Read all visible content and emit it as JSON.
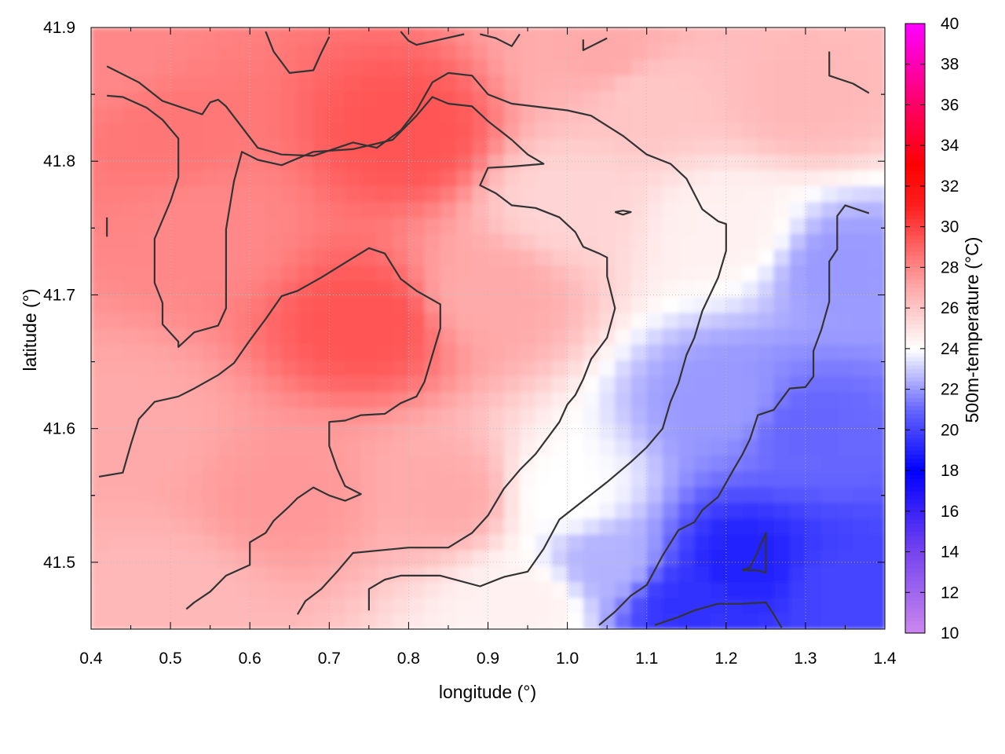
{
  "chart_data": {
    "type": "heatmap",
    "xlabel": "longitude (°)",
    "ylabel": "latitude (°)",
    "colorbar_label": "500m-temperature (°C)",
    "xlim": [
      0.4,
      1.4
    ],
    "ylim": [
      41.45,
      41.9
    ],
    "x_ticks": [
      "0.4",
      "0.5",
      "0.6",
      "0.7",
      "0.8",
      "0.9",
      "1.0",
      "1.1",
      "1.2",
      "1.3",
      "1.4"
    ],
    "y_ticks": [
      "41.5",
      "41.6",
      "41.7",
      "41.8",
      "41.9"
    ],
    "colorbar_range": [
      10,
      40
    ],
    "colorbar_ticks": [
      "10",
      "12",
      "14",
      "16",
      "18",
      "20",
      "22",
      "24",
      "26",
      "28",
      "30",
      "32",
      "34",
      "36",
      "38",
      "40"
    ],
    "colormap": [
      {
        "value": 10,
        "color": "#cc88ee"
      },
      {
        "value": 12,
        "color": "#a066ee"
      },
      {
        "value": 14,
        "color": "#7744ee"
      },
      {
        "value": 18,
        "color": "#0000ff"
      },
      {
        "value": 21,
        "color": "#6666ff"
      },
      {
        "value": 24,
        "color": "#ffffff"
      },
      {
        "value": 27,
        "color": "#ffaaaa"
      },
      {
        "value": 31,
        "color": "#ff2020"
      },
      {
        "value": 33,
        "color": "#ff0000"
      },
      {
        "value": 36,
        "color": "#ff0066"
      },
      {
        "value": 40,
        "color": "#ff00ff"
      }
    ],
    "grid": true,
    "colorbar_placement": "right",
    "contour_color": "#333333",
    "field_samples": [
      {
        "lon": 0.42,
        "lat": 41.88,
        "temp": 28
      },
      {
        "lon": 0.5,
        "lat": 41.82,
        "temp": 28.5
      },
      {
        "lon": 0.8,
        "lat": 41.82,
        "temp": 29.5
      },
      {
        "lon": 0.75,
        "lat": 41.68,
        "temp": 29.5
      },
      {
        "lon": 0.55,
        "lat": 41.75,
        "temp": 28
      },
      {
        "lon": 0.45,
        "lat": 41.6,
        "temp": 27
      },
      {
        "lon": 0.5,
        "lat": 41.47,
        "temp": 26.5
      },
      {
        "lon": 0.65,
        "lat": 41.55,
        "temp": 27.5
      },
      {
        "lon": 0.85,
        "lat": 41.55,
        "temp": 27
      },
      {
        "lon": 0.9,
        "lat": 41.7,
        "temp": 27
      },
      {
        "lon": 1.0,
        "lat": 41.77,
        "temp": 25.5
      },
      {
        "lon": 1.1,
        "lat": 41.85,
        "temp": 26
      },
      {
        "lon": 1.3,
        "lat": 41.85,
        "temp": 26.5
      },
      {
        "lon": 1.05,
        "lat": 41.88,
        "temp": 27
      },
      {
        "lon": 1.0,
        "lat": 41.55,
        "temp": 24
      },
      {
        "lon": 1.05,
        "lat": 41.5,
        "temp": 22.5
      },
      {
        "lon": 1.2,
        "lat": 41.62,
        "temp": 22
      },
      {
        "lon": 1.3,
        "lat": 41.6,
        "temp": 21
      },
      {
        "lon": 1.22,
        "lat": 41.5,
        "temp": 19
      },
      {
        "lon": 1.15,
        "lat": 41.47,
        "temp": 19.5
      },
      {
        "lon": 1.35,
        "lat": 41.48,
        "temp": 20
      },
      {
        "lon": 1.35,
        "lat": 41.72,
        "temp": 22
      },
      {
        "lon": 1.2,
        "lat": 41.75,
        "temp": 24.5
      },
      {
        "lon": 0.95,
        "lat": 41.47,
        "temp": 24.5
      }
    ],
    "contours": [
      [
        [
          0.42,
          41.871
        ],
        [
          0.46,
          41.859
        ],
        [
          0.49,
          41.845
        ],
        [
          0.54,
          41.835
        ],
        [
          0.55,
          41.844
        ],
        [
          0.56,
          41.846
        ],
        [
          0.57,
          41.841
        ],
        [
          0.61,
          41.81
        ],
        [
          0.64,
          41.805
        ],
        [
          0.68,
          41.804
        ],
        [
          0.73,
          41.814
        ],
        [
          0.76,
          41.81
        ],
        [
          0.79,
          41.823
        ],
        [
          0.81,
          41.838
        ],
        [
          0.83,
          41.859
        ],
        [
          0.85,
          41.866
        ],
        [
          0.88,
          41.864
        ],
        [
          0.9,
          41.85
        ],
        [
          0.93,
          41.843
        ],
        [
          1.0,
          41.838
        ],
        [
          1.03,
          41.834
        ],
        [
          1.07,
          41.819
        ],
        [
          1.1,
          41.805
        ],
        [
          1.13,
          41.798
        ],
        [
          1.15,
          41.787
        ],
        [
          1.17,
          41.764
        ],
        [
          1.19,
          41.755
        ],
        [
          1.2,
          41.753
        ],
        [
          1.2,
          41.733
        ],
        [
          1.19,
          41.713
        ],
        [
          1.17,
          41.688
        ],
        [
          1.16,
          41.668
        ],
        [
          1.15,
          41.655
        ],
        [
          1.14,
          41.634
        ],
        [
          1.13,
          41.62
        ],
        [
          1.12,
          41.6
        ],
        [
          1.1,
          41.586
        ],
        [
          1.08,
          41.575
        ],
        [
          1.05,
          41.56
        ],
        [
          1.02,
          41.546
        ],
        [
          0.99,
          41.532
        ],
        [
          0.97,
          41.51
        ],
        [
          0.95,
          41.493
        ],
        [
          0.92,
          41.489
        ],
        [
          0.89,
          41.482
        ],
        [
          0.84,
          41.49
        ],
        [
          0.79,
          41.49
        ],
        [
          0.77,
          41.487
        ],
        [
          0.75,
          41.48
        ],
        [
          0.75,
          41.464
        ]
      ],
      [
        [
          0.42,
          41.849
        ],
        [
          0.44,
          41.848
        ],
        [
          0.47,
          41.84
        ],
        [
          0.49,
          41.831
        ],
        [
          0.51,
          41.817
        ],
        [
          0.51,
          41.796
        ],
        [
          0.51,
          41.788
        ],
        [
          0.5,
          41.77
        ],
        [
          0.48,
          41.742
        ],
        [
          0.48,
          41.725
        ],
        [
          0.48,
          41.709
        ],
        [
          0.49,
          41.694
        ],
        [
          0.49,
          41.678
        ],
        [
          0.51,
          41.665
        ],
        [
          0.51,
          41.661
        ],
        [
          0.53,
          41.672
        ],
        [
          0.56,
          41.677
        ],
        [
          0.57,
          41.69
        ],
        [
          0.57,
          41.714
        ],
        [
          0.57,
          41.749
        ],
        [
          0.58,
          41.785
        ],
        [
          0.59,
          41.807
        ],
        [
          0.61,
          41.801
        ],
        [
          0.64,
          41.797
        ],
        [
          0.68,
          41.807
        ],
        [
          0.73,
          41.809
        ],
        [
          0.78,
          41.816
        ],
        [
          0.81,
          41.834
        ],
        [
          0.83,
          41.848
        ],
        [
          0.85,
          41.843
        ],
        [
          0.88,
          41.841
        ],
        [
          0.9,
          41.83
        ],
        [
          0.93,
          41.816
        ],
        [
          0.95,
          41.805
        ],
        [
          0.97,
          41.798
        ],
        [
          0.93,
          41.796
        ],
        [
          0.9,
          41.795
        ],
        [
          0.89,
          41.782
        ],
        [
          0.91,
          41.776
        ],
        [
          0.93,
          41.767
        ],
        [
          0.96,
          41.765
        ],
        [
          0.99,
          41.758
        ],
        [
          1.01,
          41.747
        ],
        [
          1.02,
          41.736
        ],
        [
          1.04,
          41.731
        ],
        [
          1.05,
          41.728
        ],
        [
          1.05,
          41.714
        ],
        [
          1.06,
          41.69
        ],
        [
          1.05,
          41.668
        ],
        [
          1.03,
          41.652
        ],
        [
          1.02,
          41.637
        ],
        [
          1.01,
          41.625
        ],
        [
          1.0,
          41.618
        ],
        [
          0.99,
          41.605
        ],
        [
          0.96,
          41.581
        ],
        [
          0.94,
          41.569
        ],
        [
          0.92,
          41.555
        ],
        [
          0.9,
          41.535
        ],
        [
          0.88,
          41.522
        ],
        [
          0.85,
          41.511
        ],
        [
          0.8,
          41.511
        ],
        [
          0.73,
          41.507
        ],
        [
          0.71,
          41.493
        ],
        [
          0.69,
          41.48
        ],
        [
          0.67,
          41.471
        ],
        [
          0.66,
          41.461
        ]
      ],
      [
        [
          0.41,
          41.564
        ],
        [
          0.44,
          41.567
        ],
        [
          0.45,
          41.588
        ],
        [
          0.46,
          41.607
        ],
        [
          0.48,
          41.62
        ],
        [
          0.51,
          41.624
        ],
        [
          0.53,
          41.63
        ],
        [
          0.56,
          41.64
        ],
        [
          0.58,
          41.649
        ],
        [
          0.6,
          41.666
        ],
        [
          0.62,
          41.682
        ],
        [
          0.64,
          41.699
        ],
        [
          0.66,
          41.703
        ],
        [
          0.69,
          41.713
        ],
        [
          0.72,
          41.724
        ],
        [
          0.75,
          41.735
        ],
        [
          0.77,
          41.731
        ],
        [
          0.79,
          41.712
        ],
        [
          0.81,
          41.703
        ],
        [
          0.84,
          41.693
        ],
        [
          0.84,
          41.675
        ],
        [
          0.83,
          41.655
        ],
        [
          0.82,
          41.635
        ],
        [
          0.81,
          41.624
        ],
        [
          0.79,
          41.619
        ],
        [
          0.77,
          41.611
        ],
        [
          0.74,
          41.61
        ],
        [
          0.72,
          41.606
        ],
        [
          0.7,
          41.605
        ],
        [
          0.7,
          41.587
        ],
        [
          0.71,
          41.57
        ],
        [
          0.72,
          41.557
        ],
        [
          0.74,
          41.551
        ],
        [
          0.72,
          41.546
        ],
        [
          0.7,
          41.55
        ],
        [
          0.68,
          41.556
        ],
        [
          0.66,
          41.548
        ],
        [
          0.65,
          41.542
        ],
        [
          0.63,
          41.531
        ],
        [
          0.62,
          41.522
        ],
        [
          0.6,
          41.515
        ],
        [
          0.6,
          41.498
        ],
        [
          0.57,
          41.49
        ],
        [
          0.55,
          41.478
        ],
        [
          0.53,
          41.47
        ],
        [
          0.52,
          41.465
        ]
      ],
      [
        [
          0.62,
          41.897
        ],
        [
          0.63,
          41.882
        ],
        [
          0.65,
          41.866
        ],
        [
          0.68,
          41.868
        ],
        [
          0.69,
          41.881
        ],
        [
          0.7,
          41.893
        ]
      ],
      [
        [
          0.79,
          41.897
        ],
        [
          0.8,
          41.89
        ],
        [
          0.81,
          41.887
        ],
        [
          0.84,
          41.891
        ],
        [
          0.87,
          41.895
        ]
      ],
      [
        [
          0.89,
          41.895
        ],
        [
          0.91,
          41.892
        ],
        [
          0.93,
          41.886
        ],
        [
          0.94,
          41.895
        ]
      ],
      [
        [
          1.02,
          41.891
        ],
        [
          1.02,
          41.883
        ],
        [
          1.03,
          41.886
        ],
        [
          1.05,
          41.892
        ]
      ],
      [
        [
          1.33,
          41.882
        ],
        [
          1.33,
          41.864
        ],
        [
          1.36,
          41.858
        ],
        [
          1.38,
          41.851
        ]
      ],
      [
        [
          1.38,
          41.761
        ],
        [
          1.35,
          41.767
        ],
        [
          1.34,
          41.759
        ],
        [
          1.34,
          41.734
        ],
        [
          1.33,
          41.725
        ],
        [
          1.33,
          41.7
        ],
        [
          1.33,
          41.695
        ],
        [
          1.32,
          41.674
        ],
        [
          1.31,
          41.658
        ],
        [
          1.31,
          41.639
        ],
        [
          1.3,
          41.631
        ],
        [
          1.28,
          41.63
        ],
        [
          1.27,
          41.622
        ],
        [
          1.26,
          41.614
        ],
        [
          1.24,
          41.61
        ],
        [
          1.23,
          41.592
        ],
        [
          1.22,
          41.58
        ],
        [
          1.21,
          41.57
        ],
        [
          1.19,
          41.549
        ],
        [
          1.17,
          41.539
        ],
        [
          1.16,
          41.53
        ],
        [
          1.14,
          41.524
        ],
        [
          1.12,
          41.505
        ],
        [
          1.1,
          41.483
        ],
        [
          1.08,
          41.475
        ],
        [
          1.06,
          41.463
        ],
        [
          1.04,
          41.453
        ]
      ],
      [
        [
          1.06,
          41.762
        ],
        [
          1.07,
          41.763
        ],
        [
          1.08,
          41.762
        ],
        [
          1.07,
          41.76
        ],
        [
          1.06,
          41.762
        ]
      ],
      [
        [
          1.22,
          41.494
        ],
        [
          1.24,
          41.494
        ],
        [
          1.25,
          41.492
        ],
        [
          1.25,
          41.498
        ],
        [
          1.25,
          41.518
        ],
        [
          1.25,
          41.522
        ],
        [
          1.24,
          41.508
        ],
        [
          1.23,
          41.496
        ],
        [
          1.22,
          41.494
        ]
      ],
      [
        [
          1.11,
          41.453
        ],
        [
          1.14,
          41.459
        ],
        [
          1.16,
          41.464
        ],
        [
          1.19,
          41.469
        ],
        [
          1.22,
          41.469
        ],
        [
          1.25,
          41.47
        ],
        [
          1.26,
          41.461
        ],
        [
          1.27,
          41.451
        ]
      ],
      [
        [
          0.42,
          41.758
        ],
        [
          0.42,
          41.744
        ],
        [
          0.42,
          41.749
        ]
      ]
    ]
  }
}
